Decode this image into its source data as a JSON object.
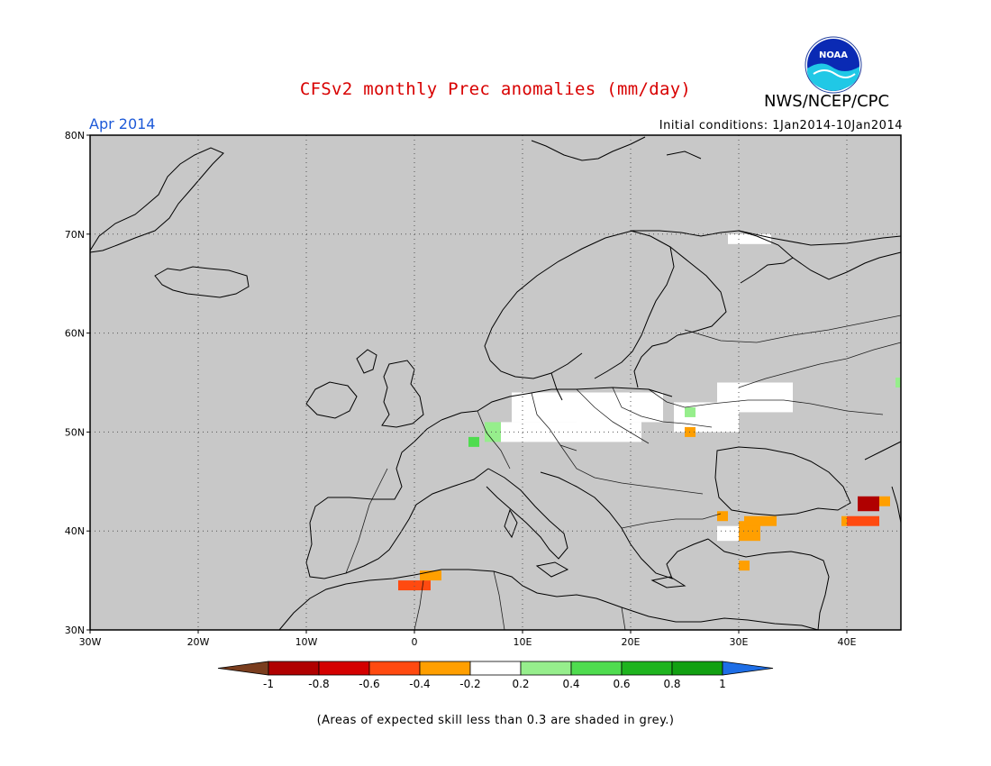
{
  "header": {
    "title": "CFSv2 monthly Prec anomalies (mm/day)",
    "agency": "NWS/NCEP/CPC",
    "logo_text": "NOAA",
    "valid_month": "Apr 2014",
    "initial_conditions": "Initial conditions: 1Jan2014-10Jan2014"
  },
  "map": {
    "lon_range": [
      -30,
      45
    ],
    "lat_range": [
      30,
      80
    ],
    "background": "#c8c8c8",
    "lat_labels": [
      "80N",
      "70N",
      "60N",
      "50N",
      "40N",
      "30N"
    ],
    "lon_labels": [
      "30W",
      "20W",
      "10W",
      "0",
      "10E",
      "20E",
      "30E",
      "40E"
    ],
    "anomaly_cells": [
      {
        "lon": 9,
        "lat": 51,
        "w": 14,
        "h": 3,
        "category": "near-zero"
      },
      {
        "lon": 8,
        "lat": 49,
        "w": 13,
        "h": 2,
        "category": "near-zero"
      },
      {
        "lon": 15,
        "lat": 50,
        "w": 4,
        "h": 2,
        "category": "near-zero"
      },
      {
        "lon": 24,
        "lat": 50,
        "w": 6,
        "h": 3,
        "category": "near-zero"
      },
      {
        "lon": 28,
        "lat": 52,
        "w": 7,
        "h": 3,
        "category": "near-zero"
      },
      {
        "lon": 30,
        "lat": 54,
        "w": 2,
        "h": 1,
        "category": "near-zero"
      },
      {
        "lon": 29,
        "lat": 69,
        "w": 4,
        "h": 1,
        "category": "near-zero"
      },
      {
        "lon": 6.5,
        "lat": 49,
        "w": 1.5,
        "h": 2,
        "category": "0.2 to 0.4"
      },
      {
        "lon": 5,
        "lat": 48.5,
        "w": 1,
        "h": 1,
        "category": "0.4 to 0.6"
      },
      {
        "lon": 25,
        "lat": 51.5,
        "w": 1,
        "h": 1,
        "category": "0.2 to 0.4"
      },
      {
        "lon": 44.5,
        "lat": 54.5,
        "w": 0.5,
        "h": 1,
        "category": "0.2 to 0.4"
      },
      {
        "lon": 25,
        "lat": 49.5,
        "w": 1,
        "h": 1,
        "category": "-0.4 to -0.2"
      },
      {
        "lon": 28,
        "lat": 39,
        "w": 2,
        "h": 1.5,
        "category": "near-zero"
      },
      {
        "lon": 30,
        "lat": 39,
        "w": 2,
        "h": 2,
        "category": "-0.4 to -0.2"
      },
      {
        "lon": 30.5,
        "lat": 40.5,
        "w": 3,
        "h": 1,
        "category": "-0.4 to -0.2"
      },
      {
        "lon": 28,
        "lat": 41,
        "w": 1,
        "h": 1,
        "category": "-0.4 to -0.2"
      },
      {
        "lon": 30,
        "lat": 36,
        "w": 1,
        "h": 1,
        "category": "-0.4 to -0.2"
      },
      {
        "lon": 41,
        "lat": 42,
        "w": 2,
        "h": 1.5,
        "category": "-1 to -0.8"
      },
      {
        "lon": 40,
        "lat": 40.5,
        "w": 3,
        "h": 1,
        "category": "-0.6 to -0.4"
      },
      {
        "lon": 43,
        "lat": 42.5,
        "w": 1,
        "h": 1,
        "category": "-0.4 to -0.2"
      },
      {
        "lon": 39.5,
        "lat": 40.5,
        "w": 0.5,
        "h": 1,
        "category": "-0.4 to -0.2"
      },
      {
        "lon": -1.5,
        "lat": 34,
        "w": 3,
        "h": 1,
        "category": "-0.6 to -0.4"
      },
      {
        "lon": 0.5,
        "lat": 35,
        "w": 2,
        "h": 1,
        "category": "-0.4 to -0.2"
      }
    ]
  },
  "colorbar": {
    "labels": [
      "-1",
      "-0.8",
      "-0.6",
      "-0.4",
      "-0.2",
      "0.2",
      "0.4",
      "0.6",
      "0.8",
      "1"
    ],
    "colors": [
      "#7a3d1e",
      "#b00000",
      "#d40000",
      "#ff4a10",
      "#ff9f00",
      "#ffffff",
      "#96ee8c",
      "#4fdc4f",
      "#1fb41f",
      "#12a012",
      "#1e6ee6"
    ]
  },
  "footnote": "(Areas of expected skill less than 0.3 are shaded in grey.)"
}
